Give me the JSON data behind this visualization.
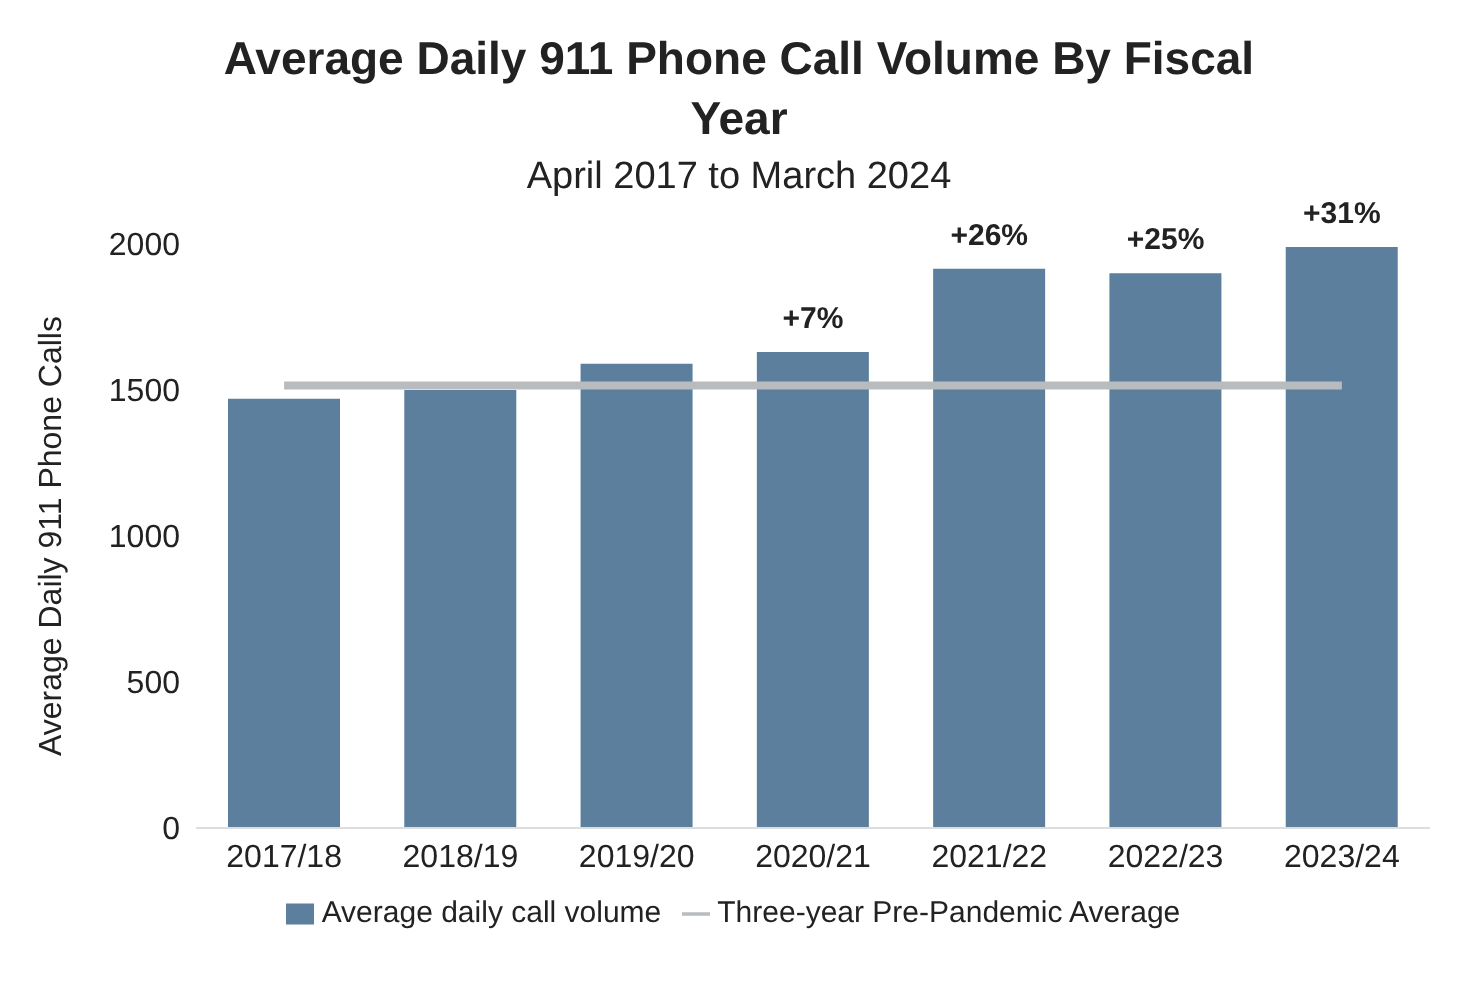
{
  "chart_data": {
    "type": "bar",
    "title": "Average Daily 911 Phone Call Volume By Fiscal Year",
    "subtitle": "April 2017 to March 2024",
    "ylabel": "Average Daily 911 Phone Calls",
    "categories": [
      "2017/18",
      "2018/19",
      "2019/20",
      "2020/21",
      "2021/22",
      "2022/23",
      "2023/24"
    ],
    "series": [
      {
        "name": "Average daily call volume",
        "color": "#5b7f9c",
        "values": [
          1470,
          1500,
          1590,
          1630,
          1915,
          1900,
          1990
        ]
      },
      {
        "name": "Three-year Pre-Pandemic Average",
        "type": "line",
        "color": "#b8bcbf",
        "values": [
          1515,
          1515,
          1515,
          1515,
          1515,
          1515,
          1515
        ]
      }
    ],
    "annotations": [
      {
        "text": "+7%",
        "x": "2020/21",
        "y": 1630
      },
      {
        "text": "+26%",
        "x": "2021/22",
        "y": 1915
      },
      {
        "text": "+25%",
        "x": "2022/23",
        "y": 1900
      },
      {
        "text": "+31%",
        "x": "2023/24",
        "y": 1990
      }
    ],
    "ylim": [
      0,
      2000
    ],
    "yticks": [
      0,
      500,
      1000,
      1500,
      2000
    ],
    "grid": false,
    "legend": "bottom"
  }
}
